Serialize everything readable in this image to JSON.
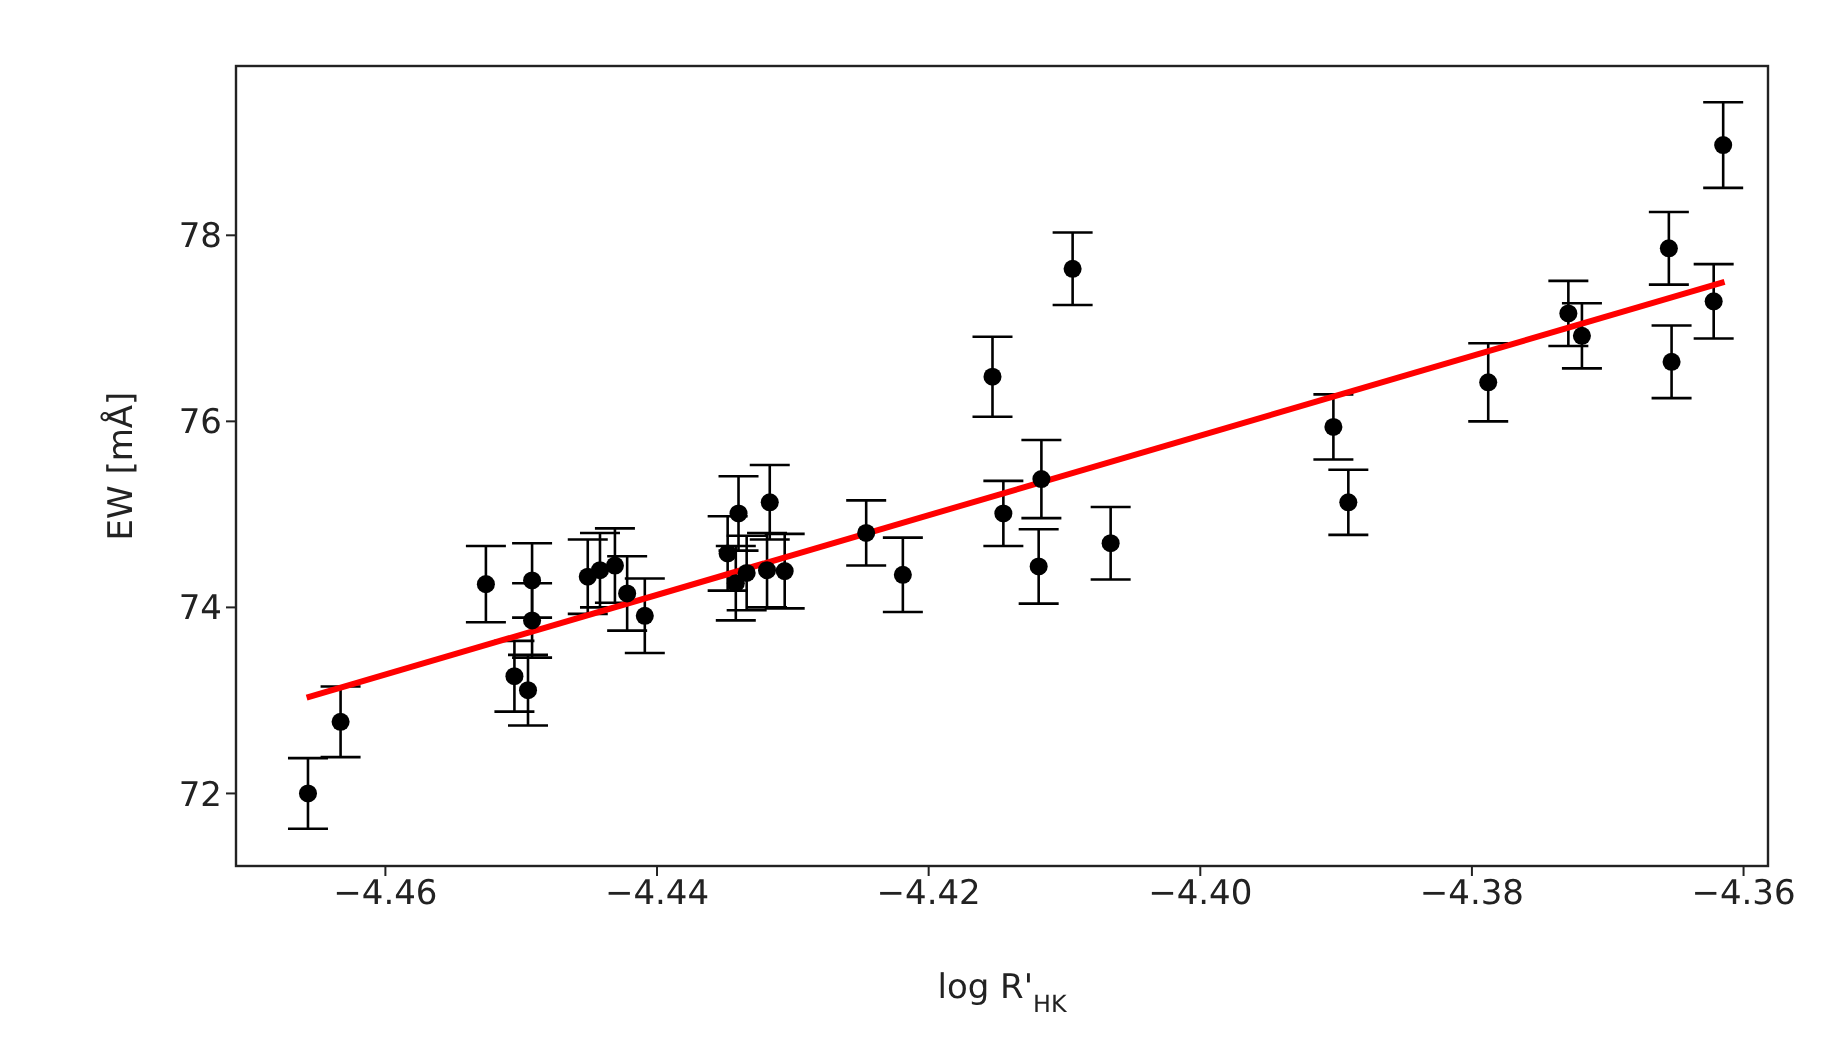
{
  "chart_data": {
    "type": "scatter",
    "xlabel": "log R'$_{HK}$",
    "ylabel": "EW [mÅ]",
    "xlim": [
      -4.471,
      -4.3582
    ],
    "ylim": [
      71.22,
      79.82
    ],
    "xticks": [
      -4.46,
      -4.44,
      -4.42,
      {
        "value": -4.4,
        "label": "−4.40"
      },
      -4.38,
      -4.36
    ],
    "yticks": [
      72,
      74,
      76,
      78
    ],
    "grid": false,
    "legend": false,
    "marker": "circle",
    "series": [
      {
        "color": "#000000",
        "x": [
          -4.4657,
          -4.4633,
          -4.4526,
          -4.4505,
          -4.4495,
          -4.4492,
          -4.4492,
          -4.4451,
          -4.4442,
          -4.4431,
          -4.4422,
          -4.4409,
          -4.4348,
          -4.434,
          -4.4342,
          -4.4334,
          -4.4317,
          -4.4319,
          -4.4306,
          -4.4246,
          -4.4219,
          -4.4153,
          -4.4145,
          -4.4117,
          -4.4119,
          -4.4094,
          -4.4066,
          -4.3902,
          -4.3891,
          -4.3788,
          -4.3729,
          -4.3719,
          -4.3655,
          -4.3653,
          -4.3622,
          -4.3615
        ],
        "values": [
          72.0,
          72.77,
          74.25,
          73.26,
          73.11,
          74.29,
          73.86,
          74.33,
          74.4,
          74.45,
          74.15,
          73.91,
          74.58,
          75.01,
          74.26,
          74.37,
          75.13,
          74.4,
          74.39,
          74.8,
          74.35,
          76.48,
          75.01,
          75.38,
          74.44,
          77.64,
          74.69,
          75.94,
          75.13,
          76.42,
          77.16,
          76.92,
          77.86,
          76.64,
          77.29,
          78.97
        ],
        "errors": [
          0.38,
          0.38,
          0.41,
          0.38,
          0.38,
          0.4,
          0.4,
          0.4,
          0.4,
          0.4,
          0.4,
          0.4,
          0.4,
          0.4,
          0.4,
          0.4,
          0.4,
          0.4,
          0.4,
          0.35,
          0.4,
          0.43,
          0.35,
          0.42,
          0.4,
          0.39,
          0.39,
          0.35,
          0.35,
          0.42,
          0.35,
          0.35,
          0.39,
          0.39,
          0.4,
          0.46
        ]
      },
      {
        "type": "line",
        "color": "#ff0000",
        "line_style": "solid",
        "marker": "none",
        "x": [
          -4.4658,
          -4.3614
        ],
        "values": [
          73.03,
          77.5
        ]
      }
    ]
  }
}
